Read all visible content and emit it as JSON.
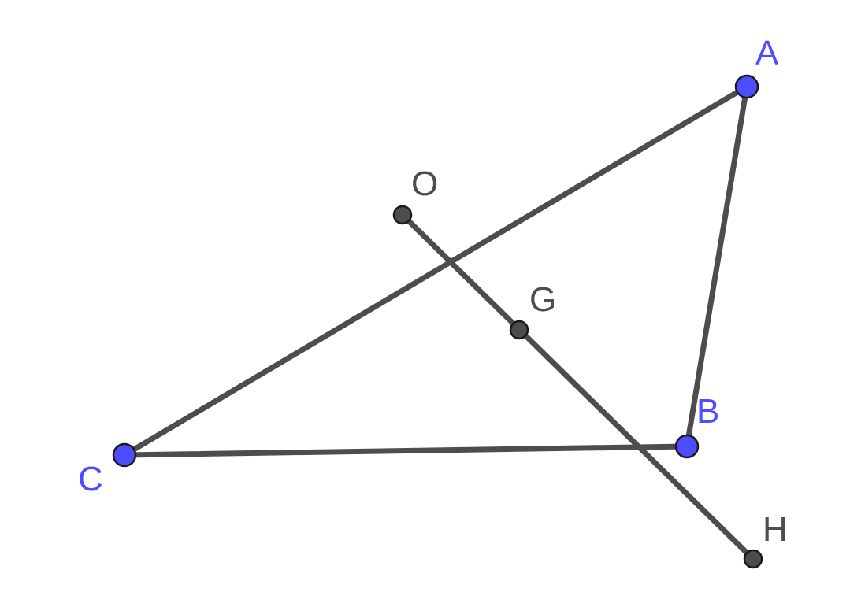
{
  "figure": {
    "points": {
      "A": {
        "label": "A",
        "kind": "free"
      },
      "B": {
        "label": "B",
        "kind": "free"
      },
      "C": {
        "label": "C",
        "kind": "free"
      },
      "O": {
        "label": "O",
        "kind": "dependent"
      },
      "G": {
        "label": "G",
        "kind": "dependent"
      },
      "H": {
        "label": "H",
        "kind": "dependent"
      }
    },
    "segments": [
      "AB",
      "BC",
      "CA",
      "OH"
    ],
    "colors": {
      "segment": "#4d4d4d",
      "free_point": "#4d4dff",
      "dependent_point": "#4d4d4d",
      "point_outline": "#1a1a1a",
      "background": "#ffffff"
    }
  }
}
